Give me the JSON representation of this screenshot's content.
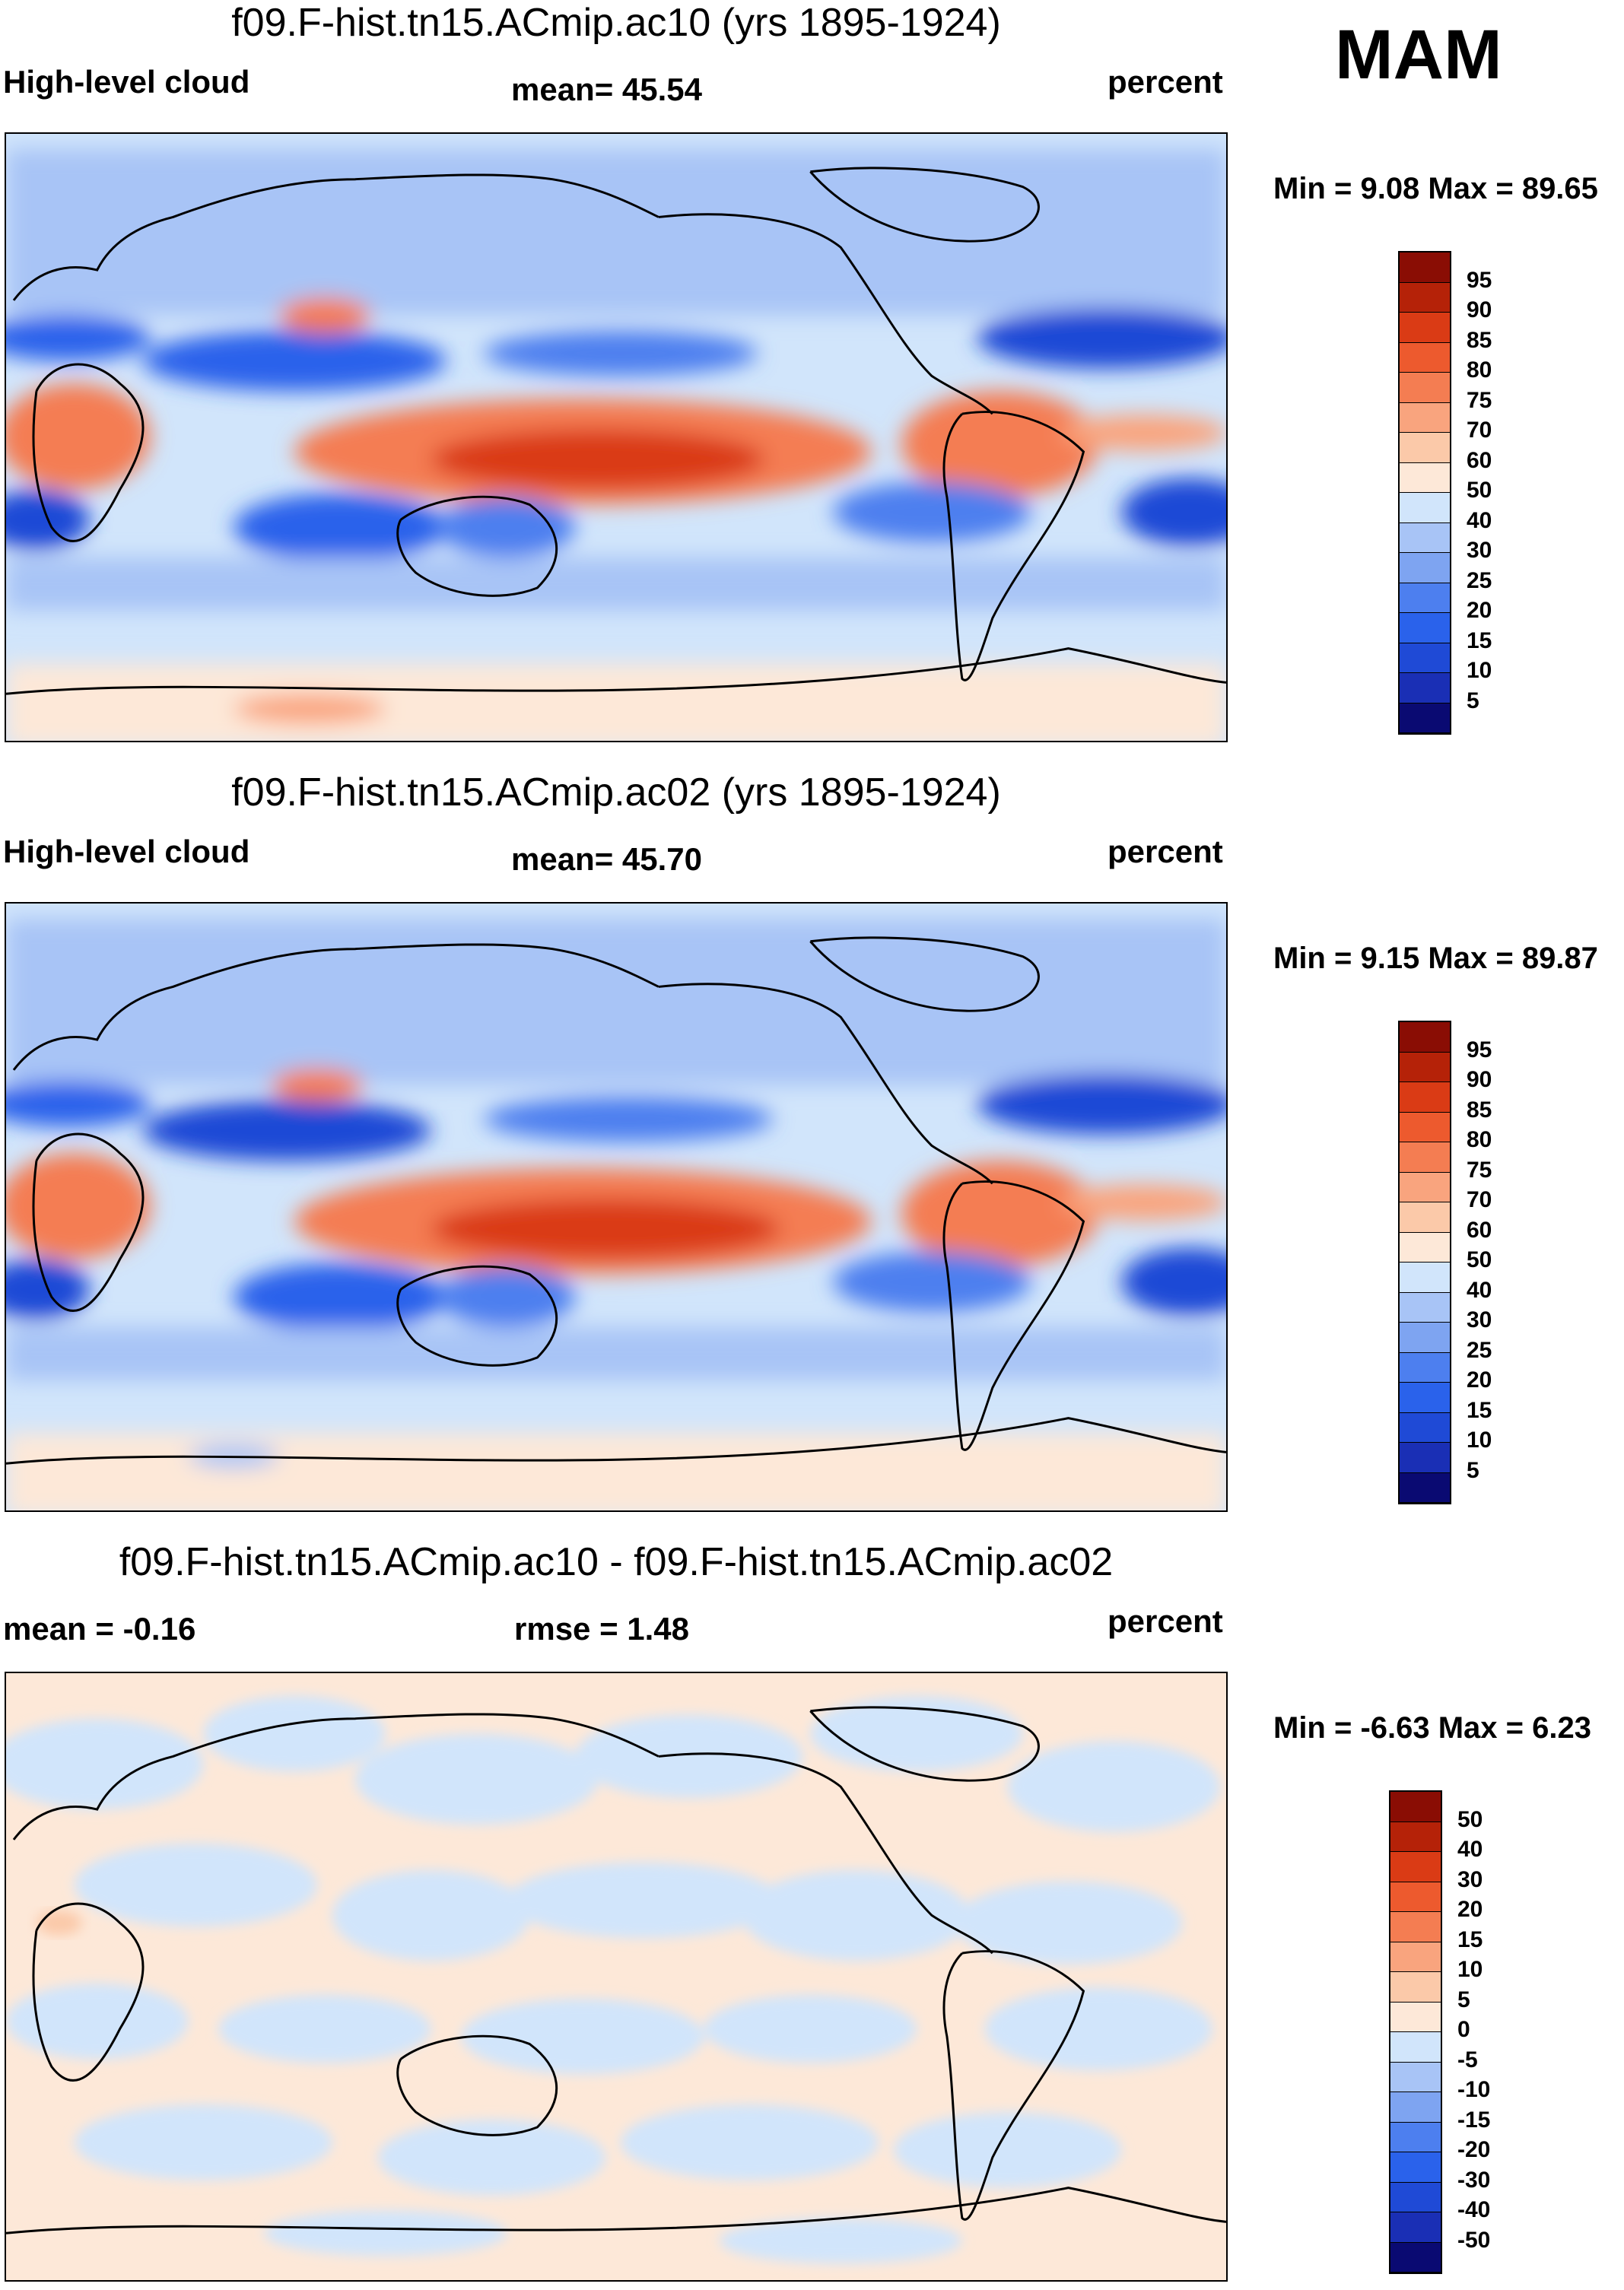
{
  "season": "MAM",
  "units": "percent",
  "colors": {
    "abs": [
      "#0a0a72",
      "#1a2fb5",
      "#1f4ad6",
      "#2a62eb",
      "#4d7fef",
      "#7ea4f1",
      "#a8c4f6",
      "#d1e5fb",
      "#fde8d8",
      "#fbc9a9",
      "#f9a47e",
      "#f47d52",
      "#ed5a2e",
      "#da3b15",
      "#b52208",
      "#8a0d04"
    ],
    "diff": [
      "#0a0a72",
      "#1a2fb5",
      "#1f4ad6",
      "#2a62eb",
      "#4d7fef",
      "#7ea4f1",
      "#a8c4f6",
      "#d1e5fb",
      "#fde8d8",
      "#fbc9a9",
      "#f9a47e",
      "#f47d52",
      "#ed5a2e",
      "#da3b15",
      "#b52208",
      "#8a0d04"
    ]
  },
  "chart_data": [
    {
      "type": "heatmap",
      "title": "f09.F-hist.tn15.ACmip.ac10 (yrs 1895-1924)",
      "variable": "High-level cloud",
      "mean_label": "mean=  45.54",
      "units": "percent",
      "minmax_label": "Min =    9.08 Max =  89.65",
      "min": 9.08,
      "max": 89.65,
      "colorbar_levels": [
        "95",
        "90",
        "85",
        "80",
        "75",
        "70",
        "60",
        "50",
        "40",
        "30",
        "25",
        "20",
        "15",
        "10",
        "5"
      ]
    },
    {
      "type": "heatmap",
      "title": "f09.F-hist.tn15.ACmip.ac02 (yrs 1895-1924)",
      "variable": "High-level cloud",
      "mean_label": "mean=  45.70",
      "units": "percent",
      "minmax_label": "Min =    9.15 Max =  89.87",
      "min": 9.15,
      "max": 89.87,
      "colorbar_levels": [
        "95",
        "90",
        "85",
        "80",
        "75",
        "70",
        "60",
        "50",
        "40",
        "30",
        "25",
        "20",
        "15",
        "10",
        "5"
      ]
    },
    {
      "type": "heatmap",
      "title": "f09.F-hist.tn15.ACmip.ac10 - f09.F-hist.tn15.ACmip.ac02",
      "mean_label": "mean =  -0.16",
      "rmse_label": "rmse =    1.48",
      "units": "percent",
      "minmax_label": "Min =  -6.63 Max =    6.23",
      "min": -6.63,
      "max": 6.23,
      "colorbar_levels": [
        "50",
        "40",
        "30",
        "20",
        "15",
        "10",
        "5",
        "0",
        "-5",
        "-10",
        "-15",
        "-20",
        "-30",
        "-40",
        "-50"
      ]
    }
  ]
}
